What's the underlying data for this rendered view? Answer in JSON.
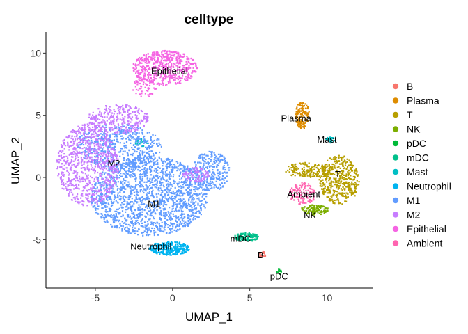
{
  "chart_data": {
    "type": "scatter",
    "title": "celltype",
    "xlabel": "UMAP_1",
    "ylabel": "UMAP_2",
    "xlim": [
      -8.2,
      13.0
    ],
    "ylim": [
      -8.9,
      11.7
    ],
    "xticks": [
      -5,
      0,
      5,
      10
    ],
    "yticks": [
      -5,
      0,
      5,
      10
    ],
    "xtick_labels": [
      "-5",
      "0",
      "5",
      "10"
    ],
    "ytick_labels": [
      "-5",
      "0",
      "5",
      "10"
    ],
    "grid": false,
    "legend_position": "right",
    "series": [
      {
        "name": "B",
        "color": "#F8766D",
        "clusters": [
          {
            "cx": 5.8,
            "cy": -6.2,
            "rx": 0.25,
            "ry": 0.25,
            "n": 25
          }
        ]
      },
      {
        "name": "Plasma",
        "color": "#DE8C00",
        "clusters": [
          {
            "cx": 8.4,
            "cy": 5.0,
            "rx": 0.45,
            "ry": 1.1,
            "n": 150
          }
        ]
      },
      {
        "name": "T",
        "color": "#B79F00",
        "clusters": [
          {
            "cx": 10.8,
            "cy": -0.2,
            "rx": 1.3,
            "ry": 2.0,
            "n": 420
          },
          {
            "cx": 8.8,
            "cy": 0.6,
            "rx": 1.6,
            "ry": 0.6,
            "n": 160
          }
        ]
      },
      {
        "name": "NK",
        "color": "#7CAE00",
        "clusters": [
          {
            "cx": 9.2,
            "cy": -2.6,
            "rx": 0.9,
            "ry": 0.4,
            "n": 120
          }
        ]
      },
      {
        "name": "pDC",
        "color": "#00BA38",
        "clusters": [
          {
            "cx": 6.9,
            "cy": -7.6,
            "rx": 0.18,
            "ry": 0.3,
            "n": 15
          }
        ]
      },
      {
        "name": "mDC",
        "color": "#00C08B",
        "clusters": [
          {
            "cx": 4.8,
            "cy": -4.8,
            "rx": 0.8,
            "ry": 0.35,
            "n": 110
          }
        ]
      },
      {
        "name": "Mast",
        "color": "#00BFC4",
        "clusters": [
          {
            "cx": 10.2,
            "cy": 3.0,
            "rx": 0.3,
            "ry": 0.3,
            "n": 25
          },
          {
            "cx": -2.0,
            "cy": 2.8,
            "rx": 0.4,
            "ry": 0.3,
            "n": 25
          }
        ]
      },
      {
        "name": "Neutrophil",
        "color": "#00B4F0",
        "clusters": [
          {
            "cx": -0.2,
            "cy": -5.7,
            "rx": 1.3,
            "ry": 0.55,
            "n": 260
          }
        ]
      },
      {
        "name": "M1",
        "color": "#619CFF",
        "clusters": [
          {
            "cx": -1.5,
            "cy": -1.5,
            "rx": 3.8,
            "ry": 3.2,
            "n": 1700
          },
          {
            "cx": 2.5,
            "cy": 0.5,
            "rx": 1.2,
            "ry": 1.6,
            "n": 250
          },
          {
            "cx": -3.5,
            "cy": 2.5,
            "rx": 2.8,
            "ry": 1.8,
            "n": 500
          }
        ]
      },
      {
        "name": "M2",
        "color": "#C77CFF",
        "clusters": [
          {
            "cx": -5.5,
            "cy": 1.0,
            "rx": 2.0,
            "ry": 3.3,
            "n": 800
          },
          {
            "cx": -3.5,
            "cy": 4.7,
            "rx": 2.0,
            "ry": 1.2,
            "n": 300
          },
          {
            "cx": 1.5,
            "cy": 0.2,
            "rx": 0.9,
            "ry": 0.6,
            "n": 80
          }
        ]
      },
      {
        "name": "Epithelial",
        "color": "#F564E3",
        "clusters": [
          {
            "cx": -0.5,
            "cy": 8.8,
            "rx": 2.1,
            "ry": 1.4,
            "n": 550
          },
          {
            "cx": -1.8,
            "cy": 7.3,
            "rx": 0.8,
            "ry": 0.9,
            "n": 60
          }
        ]
      },
      {
        "name": "Ambient",
        "color": "#FF64B0",
        "clusters": [
          {
            "cx": 8.4,
            "cy": -1.3,
            "rx": 0.9,
            "ry": 0.9,
            "n": 130
          }
        ]
      }
    ],
    "annotations": [
      {
        "text": "Epithelial",
        "x": -0.2,
        "y": 8.5
      },
      {
        "text": "Plasma",
        "x": 8.0,
        "y": 4.7
      },
      {
        "text": "Mast",
        "x": 10.0,
        "y": 3.0
      },
      {
        "text": "M2",
        "x": -3.8,
        "y": 1.1
      },
      {
        "text": "T",
        "x": 10.7,
        "y": 0.2
      },
      {
        "text": "Ambient",
        "x": 8.5,
        "y": -1.4
      },
      {
        "text": "M1",
        "x": -1.2,
        "y": -2.2
      },
      {
        "text": "NK",
        "x": 8.9,
        "y": -3.1
      },
      {
        "text": "mDC",
        "x": 4.4,
        "y": -5.0
      },
      {
        "text": "Neutrophil",
        "x": -1.4,
        "y": -5.6
      },
      {
        "text": "B",
        "x": 5.7,
        "y": -6.3
      },
      {
        "text": "pDC",
        "x": 6.9,
        "y": -8.0
      }
    ]
  }
}
